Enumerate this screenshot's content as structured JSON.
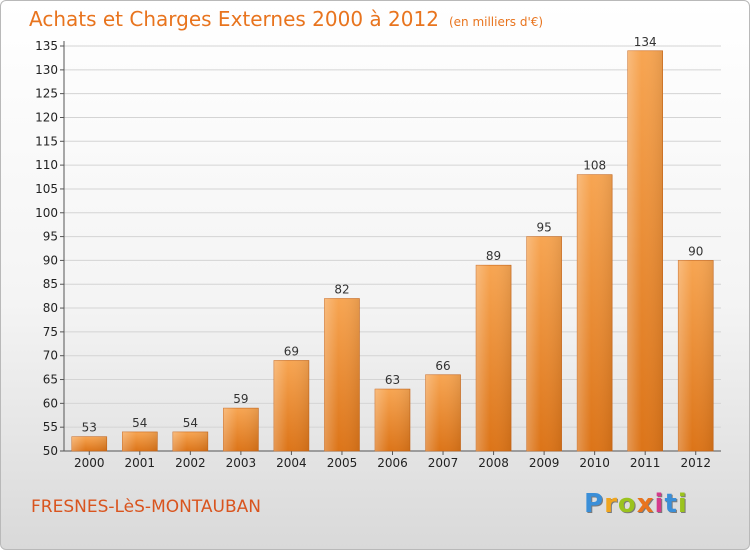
{
  "title": "Achats et Charges Externes 2000 à 2012",
  "unit": "(en milliers d'€)",
  "place": "FRESNES-LèS-MONTAUBAN",
  "logo": {
    "parts": [
      "P",
      "r",
      "o",
      "x",
      "i",
      "t",
      "i"
    ]
  },
  "chart_data": {
    "type": "bar",
    "title": "Achats et Charges Externes 2000 à 2012",
    "xlabel": "",
    "ylabel": "",
    "categories": [
      "2000",
      "2001",
      "2002",
      "2003",
      "2004",
      "2005",
      "2006",
      "2007",
      "2008",
      "2009",
      "2010",
      "2011",
      "2012"
    ],
    "values": [
      53,
      54,
      54,
      59,
      69,
      82,
      63,
      66,
      89,
      95,
      108,
      134,
      90
    ],
    "ylim": [
      50,
      135
    ],
    "yticks": [
      50,
      55,
      60,
      65,
      70,
      75,
      80,
      85,
      90,
      95,
      100,
      105,
      110,
      115,
      120,
      125,
      130,
      135
    ],
    "grid": true,
    "legend": "none",
    "bar_color": "#f0913a"
  }
}
